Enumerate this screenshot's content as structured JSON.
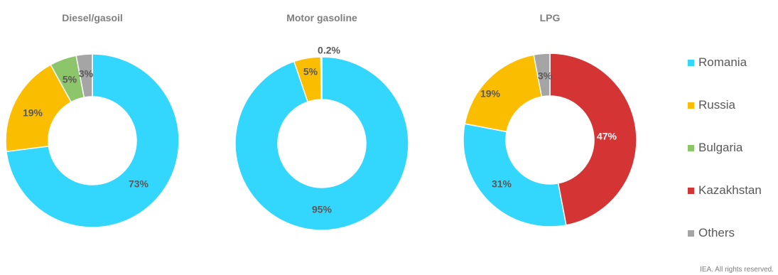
{
  "chart_data": [
    {
      "type": "pie",
      "title": "Diesel/gasoil",
      "slices": [
        {
          "category": "Romania",
          "value": 73,
          "label": "73%"
        },
        {
          "category": "Russia",
          "value": 19,
          "label": "19%"
        },
        {
          "category": "Bulgaria",
          "value": 5,
          "label": "5%"
        },
        {
          "category": "Others",
          "value": 3,
          "label": "3%"
        }
      ]
    },
    {
      "type": "pie",
      "title": "Motor gasoline",
      "slices": [
        {
          "category": "Romania",
          "value": 94.8,
          "label": "95%"
        },
        {
          "category": "Russia",
          "value": 5,
          "label": "5%"
        },
        {
          "category": "Others",
          "value": 0.2,
          "label": "0.2%"
        }
      ]
    },
    {
      "type": "pie",
      "title": "LPG",
      "slices": [
        {
          "category": "Kazakhstan",
          "value": 47,
          "label": "47%"
        },
        {
          "category": "Romania",
          "value": 31,
          "label": "31%"
        },
        {
          "category": "Russia",
          "value": 19,
          "label": "19%"
        },
        {
          "category": "Others",
          "value": 3,
          "label": "3%"
        }
      ]
    }
  ],
  "legend": {
    "placement": "right",
    "items": [
      {
        "label": "Romania",
        "color": "#33d6fc"
      },
      {
        "label": "Russia",
        "color": "#fbbd00"
      },
      {
        "label": "Bulgaria",
        "color": "#8dc56b"
      },
      {
        "label": "Kazakhstan",
        "color": "#d43434"
      },
      {
        "label": "Others",
        "color": "#a5a5a5"
      }
    ]
  },
  "footer": "IEA. All rights reserved."
}
